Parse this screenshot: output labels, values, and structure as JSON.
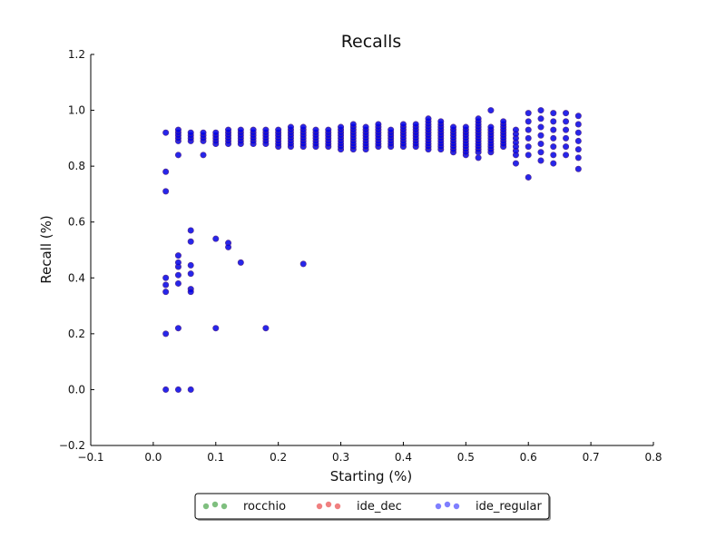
{
  "chart_data": {
    "type": "scatter",
    "title": "Recalls",
    "xlabel": "Starting (%)",
    "ylabel": "Recall (%)",
    "xlim": [
      -0.1,
      0.8
    ],
    "ylim": [
      -0.2,
      1.2
    ],
    "xticks": [
      -0.1,
      0.0,
      0.1,
      0.2,
      0.3,
      0.4,
      0.5,
      0.6,
      0.7,
      0.8
    ],
    "yticks": [
      -0.2,
      0.0,
      0.2,
      0.4,
      0.6,
      0.8,
      1.0,
      1.2
    ],
    "xtick_labels": [
      "−0.1",
      "0.0",
      "0.1",
      "0.2",
      "0.3",
      "0.4",
      "0.5",
      "0.6",
      "0.7",
      "0.8"
    ],
    "ytick_labels": [
      "−0.2",
      "0.0",
      "0.2",
      "0.4",
      "0.6",
      "0.8",
      "1.0",
      "1.2"
    ],
    "grid": false,
    "legend_position": "bottom-center",
    "series": [
      {
        "name": "rocchio",
        "color": "#7fbf7f",
        "points": []
      },
      {
        "name": "ide_dec",
        "color": "#f08080",
        "points": []
      },
      {
        "name": "ide_regular",
        "color": "#0000e6",
        "legend_color": "#7f7fff",
        "points": [
          [
            0.02,
            0.0
          ],
          [
            0.04,
            0.0
          ],
          [
            0.06,
            0.0
          ],
          [
            0.02,
            0.2
          ],
          [
            0.02,
            0.92
          ],
          [
            0.02,
            0.78
          ],
          [
            0.02,
            0.71
          ],
          [
            0.02,
            0.4
          ],
          [
            0.02,
            0.375
          ],
          [
            0.02,
            0.35
          ],
          [
            0.04,
            0.22
          ],
          [
            0.04,
            0.38
          ],
          [
            0.04,
            0.41
          ],
          [
            0.04,
            0.44
          ],
          [
            0.04,
            0.455
          ],
          [
            0.04,
            0.48
          ],
          [
            0.04,
            0.84
          ],
          [
            0.06,
            0.57
          ],
          [
            0.06,
            0.53
          ],
          [
            0.06,
            0.445
          ],
          [
            0.06,
            0.415
          ],
          [
            0.06,
            0.36
          ],
          [
            0.06,
            0.35
          ],
          [
            0.08,
            0.84
          ],
          [
            0.1,
            0.54
          ],
          [
            0.1,
            0.22
          ],
          [
            0.12,
            0.525
          ],
          [
            0.12,
            0.51
          ],
          [
            0.14,
            0.455
          ],
          [
            0.18,
            0.22
          ],
          [
            0.24,
            0.45
          ],
          [
            0.54,
            1.0
          ],
          [
            0.6,
            0.76
          ],
          [
            0.68,
            0.79
          ],
          [
            0.52,
            0.83
          ],
          [
            0.58,
            0.81
          ],
          [
            0.64,
            0.81
          ]
        ],
        "clusters": [
          {
            "x": 0.04,
            "ymin": 0.89,
            "ymax": 0.93,
            "step": 0.01
          },
          {
            "x": 0.06,
            "ymin": 0.89,
            "ymax": 0.92,
            "step": 0.01
          },
          {
            "x": 0.08,
            "ymin": 0.89,
            "ymax": 0.92,
            "step": 0.01
          },
          {
            "x": 0.1,
            "ymin": 0.88,
            "ymax": 0.92,
            "step": 0.01
          },
          {
            "x": 0.12,
            "ymin": 0.88,
            "ymax": 0.93,
            "step": 0.01
          },
          {
            "x": 0.14,
            "ymin": 0.88,
            "ymax": 0.93,
            "step": 0.01
          },
          {
            "x": 0.16,
            "ymin": 0.88,
            "ymax": 0.93,
            "step": 0.01
          },
          {
            "x": 0.18,
            "ymin": 0.88,
            "ymax": 0.93,
            "step": 0.01
          },
          {
            "x": 0.2,
            "ymin": 0.87,
            "ymax": 0.93,
            "step": 0.01
          },
          {
            "x": 0.22,
            "ymin": 0.87,
            "ymax": 0.94,
            "step": 0.01
          },
          {
            "x": 0.24,
            "ymin": 0.87,
            "ymax": 0.94,
            "step": 0.01
          },
          {
            "x": 0.26,
            "ymin": 0.87,
            "ymax": 0.93,
            "step": 0.01
          },
          {
            "x": 0.28,
            "ymin": 0.87,
            "ymax": 0.93,
            "step": 0.01
          },
          {
            "x": 0.3,
            "ymin": 0.86,
            "ymax": 0.94,
            "step": 0.01
          },
          {
            "x": 0.32,
            "ymin": 0.86,
            "ymax": 0.95,
            "step": 0.01
          },
          {
            "x": 0.34,
            "ymin": 0.86,
            "ymax": 0.94,
            "step": 0.01
          },
          {
            "x": 0.36,
            "ymin": 0.87,
            "ymax": 0.95,
            "step": 0.01
          },
          {
            "x": 0.38,
            "ymin": 0.87,
            "ymax": 0.93,
            "step": 0.01
          },
          {
            "x": 0.4,
            "ymin": 0.87,
            "ymax": 0.95,
            "step": 0.01
          },
          {
            "x": 0.42,
            "ymin": 0.87,
            "ymax": 0.95,
            "step": 0.01
          },
          {
            "x": 0.44,
            "ymin": 0.86,
            "ymax": 0.97,
            "step": 0.01
          },
          {
            "x": 0.46,
            "ymin": 0.86,
            "ymax": 0.96,
            "step": 0.01
          },
          {
            "x": 0.48,
            "ymin": 0.85,
            "ymax": 0.94,
            "step": 0.01
          },
          {
            "x": 0.5,
            "ymin": 0.84,
            "ymax": 0.94,
            "step": 0.01
          },
          {
            "x": 0.52,
            "ymin": 0.85,
            "ymax": 0.97,
            "step": 0.01
          },
          {
            "x": 0.54,
            "ymin": 0.85,
            "ymax": 0.94,
            "step": 0.01
          },
          {
            "x": 0.56,
            "ymin": 0.87,
            "ymax": 0.96,
            "step": 0.01
          },
          {
            "x": 0.58,
            "ymin": 0.84,
            "ymax": 0.93,
            "step": 0.015
          },
          {
            "x": 0.6,
            "ymin": 0.84,
            "ymax": 1.0,
            "step": 0.03
          },
          {
            "x": 0.62,
            "ymin": 0.82,
            "ymax": 1.0,
            "step": 0.03
          },
          {
            "x": 0.64,
            "ymin": 0.84,
            "ymax": 1.0,
            "step": 0.03
          },
          {
            "x": 0.66,
            "ymin": 0.84,
            "ymax": 1.0,
            "step": 0.03
          },
          {
            "x": 0.68,
            "ymin": 0.83,
            "ymax": 1.0,
            "step": 0.03
          }
        ]
      }
    ]
  }
}
